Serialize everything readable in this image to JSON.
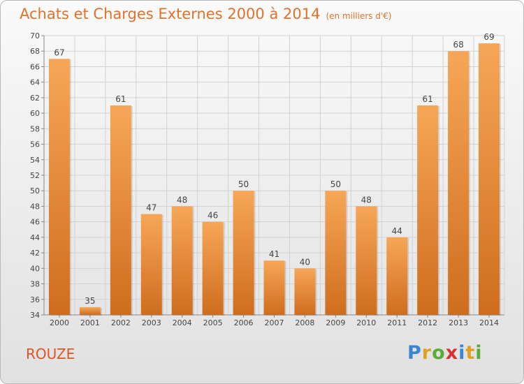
{
  "title": "Achats et Charges Externes 2000 à 2014",
  "subtitle": "(en milliers d'€)",
  "location": "ROUZE",
  "logo": {
    "letters": [
      "P",
      "r",
      "o",
      "x",
      "i",
      "t",
      "i"
    ],
    "colors": [
      "#3a86d4",
      "#e0a020",
      "#57ad37",
      "#d92f2f",
      "#3a86d4",
      "#e0a020",
      "#57ad37"
    ]
  },
  "colors": {
    "bar_top": "#f7a657",
    "bar_bottom": "#cf6d1e",
    "title": "#e2712a",
    "grid": "#d2d2d2"
  },
  "chart_data": {
    "type": "bar",
    "categories": [
      "2000",
      "2001",
      "2002",
      "2003",
      "2004",
      "2005",
      "2006",
      "2007",
      "2008",
      "2009",
      "2010",
      "2011",
      "2012",
      "2013",
      "2014"
    ],
    "values": [
      67,
      35,
      61,
      47,
      48,
      46,
      50,
      41,
      40,
      50,
      48,
      44,
      61,
      68,
      69
    ],
    "ylim": [
      34,
      70
    ],
    "yticks": [
      34,
      36,
      38,
      40,
      42,
      44,
      46,
      48,
      50,
      52,
      54,
      56,
      58,
      60,
      62,
      64,
      66,
      68,
      70
    ],
    "grid": true,
    "data_labels": true
  }
}
